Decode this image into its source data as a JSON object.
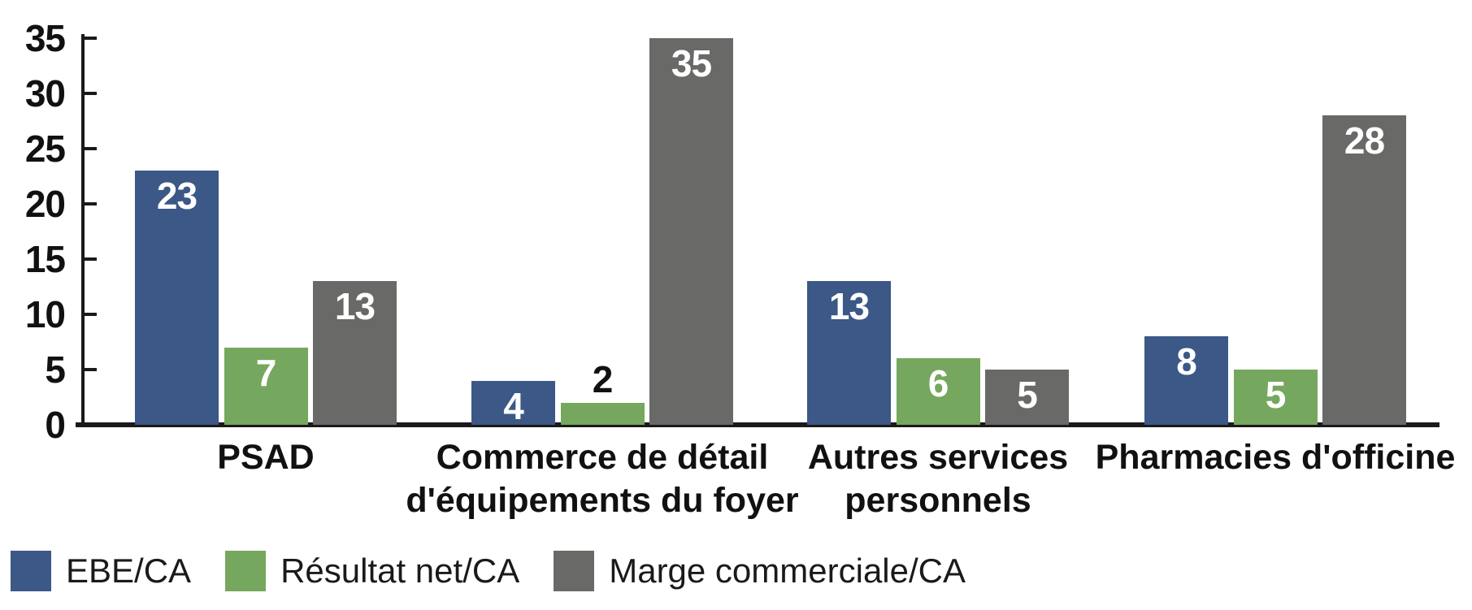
{
  "chart_data": {
    "type": "bar",
    "title": "",
    "xlabel": "",
    "ylabel": "",
    "grid": false,
    "legend_position": "bottom-left",
    "ylim": [
      0,
      35
    ],
    "yticks": [
      0,
      5,
      10,
      15,
      20,
      25,
      30,
      35
    ],
    "categories": [
      "PSAD",
      "Commerce de détail\nd'équipements du foyer",
      "Autres services\npersonnels",
      "Pharmacies d'officine"
    ],
    "series": [
      {
        "name": "EBE/CA",
        "color": "#3B5886",
        "values": [
          23,
          4,
          13,
          8
        ]
      },
      {
        "name": "Résultat net/CA",
        "color": "#76A75E",
        "values": [
          7,
          2,
          6,
          5
        ]
      },
      {
        "name": "Marge commerciale/CA",
        "color": "#696967",
        "values": [
          13,
          35,
          5,
          28
        ]
      }
    ],
    "value_label_inside_color": "#FFFFFF",
    "value_label_outside_color": "#111111",
    "axis_color": "#1A1A1A"
  }
}
